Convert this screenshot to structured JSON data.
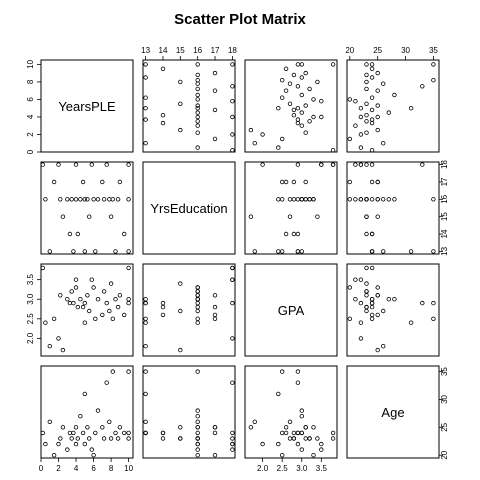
{
  "chart_data": {
    "type": "scatter",
    "title": "Scatter Plot Matrix",
    "variables": [
      "YearsPLE",
      "YrsEducation",
      "GPA",
      "Age"
    ],
    "axes": {
      "YearsPLE": {
        "range": [
          0,
          10.5
        ],
        "ticks": [
          0,
          2,
          4,
          6,
          8,
          10
        ]
      },
      "YrsEducation": {
        "range": [
          12.85,
          18.15
        ],
        "ticks": [
          13,
          14,
          15,
          16,
          17,
          18
        ]
      },
      "GPA": {
        "range": [
          1.55,
          3.9
        ],
        "ticks": [
          2.0,
          2.5,
          3.0,
          3.5
        ],
        "tick_labels": [
          "2.0",
          "2.5",
          "3.0",
          "3.5"
        ]
      },
      "Age": {
        "range": [
          19.5,
          36
        ],
        "ticks": [
          20,
          25,
          30,
          35
        ]
      }
    },
    "observations": [
      {
        "YearsPLE": 0.2,
        "YrsEducation": 18,
        "GPA": 3.8,
        "Age": 24
      },
      {
        "YearsPLE": 0.5,
        "YrsEducation": 16,
        "GPA": 2.4,
        "Age": 22
      },
      {
        "YearsPLE": 1.0,
        "YrsEducation": 13,
        "GPA": 1.8,
        "Age": 26
      },
      {
        "YearsPLE": 1.5,
        "YrsEducation": 17,
        "GPA": 2.5,
        "Age": 20
      },
      {
        "YearsPLE": 2.0,
        "YrsEducation": 18,
        "GPA": 2.0,
        "Age": 22
      },
      {
        "YearsPLE": 2.2,
        "YrsEducation": 16,
        "GPA": 3.1,
        "Age": 23
      },
      {
        "YearsPLE": 2.5,
        "YrsEducation": 15,
        "GPA": 1.7,
        "Age": 25
      },
      {
        "YearsPLE": 3.0,
        "YrsEducation": 16,
        "GPA": 3.0,
        "Age": 21
      },
      {
        "YearsPLE": 3.3,
        "YrsEducation": 14,
        "GPA": 2.9,
        "Age": 24
      },
      {
        "YearsPLE": 3.5,
        "YrsEducation": 16,
        "GPA": 3.2,
        "Age": 23
      },
      {
        "YearsPLE": 3.7,
        "YrsEducation": 13,
        "GPA": 2.9,
        "Age": 24
      },
      {
        "YearsPLE": 4.0,
        "YrsEducation": 18,
        "GPA": 3.5,
        "Age": 22
      },
      {
        "YearsPLE": 4.0,
        "YrsEducation": 16,
        "GPA": 3.3,
        "Age": 25
      },
      {
        "YearsPLE": 4.2,
        "YrsEducation": 14,
        "GPA": 2.8,
        "Age": 23
      },
      {
        "YearsPLE": 4.5,
        "YrsEducation": 16,
        "GPA": 3.0,
        "Age": 27
      },
      {
        "YearsPLE": 4.8,
        "YrsEducation": 17,
        "GPA": 2.8,
        "Age": 24
      },
      {
        "YearsPLE": 5.0,
        "YrsEducation": 16,
        "GPA": 2.9,
        "Age": 22
      },
      {
        "YearsPLE": 5.0,
        "YrsEducation": 13,
        "GPA": 2.4,
        "Age": 31
      },
      {
        "YearsPLE": 5.3,
        "YrsEducation": 16,
        "GPA": 3.1,
        "Age": 25
      },
      {
        "YearsPLE": 5.5,
        "YrsEducation": 15,
        "GPA": 2.7,
        "Age": 23
      },
      {
        "YearsPLE": 5.8,
        "YrsEducation": 18,
        "GPA": 3.5,
        "Age": 21
      },
      {
        "YearsPLE": 6.0,
        "YrsEducation": 16,
        "GPA": 3.3,
        "Age": 20
      },
      {
        "YearsPLE": 6.2,
        "YrsEducation": 13,
        "GPA": 2.5,
        "Age": 24
      },
      {
        "YearsPLE": 6.5,
        "YrsEducation": 16,
        "GPA": 3.0,
        "Age": 28
      },
      {
        "YearsPLE": 7.0,
        "YrsEducation": 17,
        "GPA": 2.6,
        "Age": 25
      },
      {
        "YearsPLE": 7.2,
        "YrsEducation": 16,
        "GPA": 3.2,
        "Age": 23
      },
      {
        "YearsPLE": 7.5,
        "YrsEducation": 18,
        "GPA": 2.9,
        "Age": 33
      },
      {
        "YearsPLE": 7.8,
        "YrsEducation": 16,
        "GPA": 2.7,
        "Age": 26
      },
      {
        "YearsPLE": 8.0,
        "YrsEducation": 15,
        "GPA": 3.4,
        "Age": 23
      },
      {
        "YearsPLE": 8.2,
        "YrsEducation": 16,
        "GPA": 2.5,
        "Age": 35
      },
      {
        "YearsPLE": 8.5,
        "YrsEducation": 13,
        "GPA": 3.0,
        "Age": 24
      },
      {
        "YearsPLE": 8.8,
        "YrsEducation": 16,
        "GPA": 2.8,
        "Age": 23
      },
      {
        "YearsPLE": 9.0,
        "YrsEducation": 17,
        "GPA": 3.1,
        "Age": 25
      },
      {
        "YearsPLE": 9.5,
        "YrsEducation": 14,
        "GPA": 2.6,
        "Age": 24
      },
      {
        "YearsPLE": 10.0,
        "YrsEducation": 18,
        "GPA": 3.8,
        "Age": 23
      },
      {
        "YearsPLE": 10.0,
        "YrsEducation": 16,
        "GPA": 3.0,
        "Age": 24
      },
      {
        "YearsPLE": 10.0,
        "YrsEducation": 13,
        "GPA": 2.9,
        "Age": 35
      }
    ]
  }
}
